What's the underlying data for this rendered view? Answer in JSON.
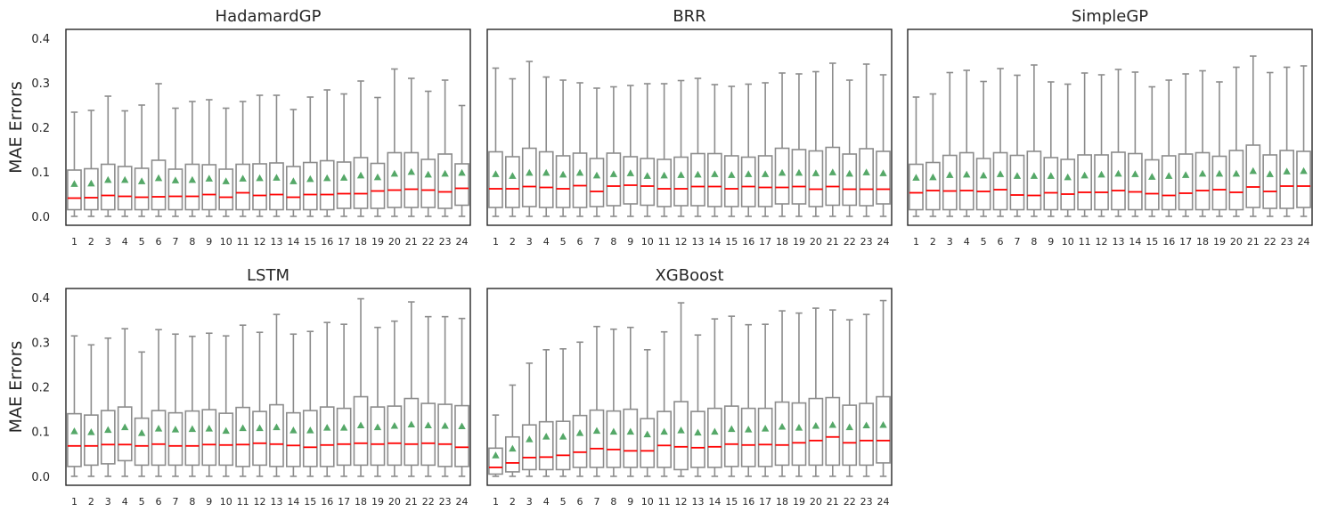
{
  "figure": {
    "ylabel": "MAE Errors"
  },
  "chart_data": [
    {
      "type": "box",
      "title": "HadamardGP",
      "categories": [
        "1",
        "2",
        "3",
        "4",
        "5",
        "6",
        "7",
        "8",
        "9",
        "10",
        "11",
        "12",
        "13",
        "14",
        "15",
        "16",
        "17",
        "18",
        "19",
        "20",
        "21",
        "22",
        "23",
        "24"
      ],
      "ylim": [
        -0.02,
        0.42
      ],
      "yticks": [
        "0.0",
        "0.1",
        "0.2",
        "0.3",
        "0.4"
      ],
      "boxes": {
        "q1": [
          0.015,
          0.015,
          0.015,
          0.015,
          0.015,
          0.015,
          0.015,
          0.015,
          0.015,
          0.015,
          0.015,
          0.015,
          0.015,
          0.015,
          0.015,
          0.015,
          0.018,
          0.018,
          0.018,
          0.02,
          0.02,
          0.02,
          0.018,
          0.025
        ],
        "median": [
          0.041,
          0.042,
          0.047,
          0.045,
          0.043,
          0.044,
          0.045,
          0.045,
          0.049,
          0.043,
          0.053,
          0.047,
          0.049,
          0.043,
          0.049,
          0.049,
          0.051,
          0.051,
          0.057,
          0.059,
          0.061,
          0.059,
          0.055,
          0.063
        ],
        "q3": [
          0.104,
          0.107,
          0.117,
          0.112,
          0.108,
          0.126,
          0.106,
          0.117,
          0.116,
          0.106,
          0.117,
          0.118,
          0.12,
          0.112,
          0.121,
          0.125,
          0.122,
          0.132,
          0.119,
          0.143,
          0.143,
          0.128,
          0.14,
          0.118
        ],
        "whisk_lo": [
          0,
          0,
          0,
          0,
          0,
          0,
          0,
          0,
          0,
          0,
          0,
          0,
          0,
          0,
          0,
          0,
          0,
          0,
          0,
          0,
          0,
          0,
          0,
          0
        ],
        "whisk_hi": [
          0.234,
          0.238,
          0.27,
          0.237,
          0.25,
          0.298,
          0.243,
          0.258,
          0.262,
          0.243,
          0.258,
          0.272,
          0.272,
          0.24,
          0.268,
          0.284,
          0.275,
          0.304,
          0.267,
          0.331,
          0.31,
          0.281,
          0.306,
          0.249
        ],
        "mean": [
          0.073,
          0.074,
          0.082,
          0.082,
          0.079,
          0.086,
          0.081,
          0.082,
          0.085,
          0.079,
          0.085,
          0.086,
          0.087,
          0.079,
          0.084,
          0.086,
          0.087,
          0.092,
          0.088,
          0.096,
          0.1,
          0.094,
          0.096,
          0.098
        ]
      }
    },
    {
      "type": "box",
      "title": "BRR",
      "categories": [
        "1",
        "2",
        "3",
        "4",
        "5",
        "6",
        "7",
        "8",
        "9",
        "10",
        "11",
        "12",
        "13",
        "14",
        "15",
        "16",
        "17",
        "18",
        "19",
        "20",
        "21",
        "22",
        "23",
        "24"
      ],
      "ylim": [
        -0.02,
        0.42
      ],
      "yticks": [
        "0.0",
        "0.1",
        "0.2",
        "0.3",
        "0.4"
      ],
      "boxes": {
        "q1": [
          0.02,
          0.02,
          0.022,
          0.02,
          0.02,
          0.02,
          0.022,
          0.024,
          0.028,
          0.025,
          0.022,
          0.024,
          0.024,
          0.022,
          0.022,
          0.022,
          0.022,
          0.028,
          0.028,
          0.022,
          0.025,
          0.025,
          0.024,
          0.028
        ],
        "median": [
          0.062,
          0.062,
          0.067,
          0.065,
          0.062,
          0.069,
          0.056,
          0.068,
          0.07,
          0.068,
          0.062,
          0.062,
          0.067,
          0.067,
          0.062,
          0.067,
          0.065,
          0.065,
          0.067,
          0.061,
          0.067,
          0.061,
          0.061,
          0.061
        ],
        "q3": [
          0.145,
          0.134,
          0.153,
          0.145,
          0.136,
          0.142,
          0.13,
          0.142,
          0.134,
          0.13,
          0.128,
          0.133,
          0.141,
          0.141,
          0.136,
          0.133,
          0.136,
          0.153,
          0.15,
          0.147,
          0.155,
          0.14,
          0.152,
          0.146
        ],
        "whisk_lo": [
          0,
          0,
          0,
          0,
          0,
          0,
          0,
          0,
          0,
          0,
          0,
          0,
          0,
          0,
          0,
          0,
          0,
          0,
          0,
          0,
          0,
          0,
          0,
          0
        ],
        "whisk_hi": [
          0.333,
          0.309,
          0.348,
          0.313,
          0.306,
          0.3,
          0.288,
          0.291,
          0.294,
          0.298,
          0.298,
          0.305,
          0.31,
          0.296,
          0.292,
          0.297,
          0.3,
          0.322,
          0.32,
          0.325,
          0.344,
          0.306,
          0.342,
          0.318
        ],
        "mean": [
          0.095,
          0.091,
          0.098,
          0.098,
          0.094,
          0.098,
          0.092,
          0.095,
          0.097,
          0.091,
          0.092,
          0.093,
          0.094,
          0.095,
          0.093,
          0.095,
          0.095,
          0.098,
          0.098,
          0.097,
          0.099,
          0.096,
          0.099,
          0.097
        ]
      }
    },
    {
      "type": "box",
      "title": "SimpleGP",
      "categories": [
        "1",
        "2",
        "3",
        "4",
        "5",
        "6",
        "7",
        "8",
        "9",
        "10",
        "11",
        "12",
        "13",
        "14",
        "15",
        "16",
        "17",
        "18",
        "19",
        "20",
        "21",
        "22",
        "23",
        "24"
      ],
      "ylim": [
        -0.02,
        0.42
      ],
      "yticks": [
        "0.0",
        "0.1",
        "0.2",
        "0.3",
        "0.4"
      ],
      "boxes": {
        "q1": [
          0.015,
          0.015,
          0.015,
          0.015,
          0.015,
          0.015,
          0.015,
          0.015,
          0.015,
          0.015,
          0.015,
          0.015,
          0.015,
          0.015,
          0.015,
          0.015,
          0.015,
          0.015,
          0.015,
          0.015,
          0.02,
          0.018,
          0.018,
          0.02
        ],
        "median": [
          0.053,
          0.058,
          0.057,
          0.058,
          0.056,
          0.06,
          0.048,
          0.047,
          0.053,
          0.05,
          0.054,
          0.054,
          0.058,
          0.055,
          0.051,
          0.047,
          0.052,
          0.058,
          0.06,
          0.054,
          0.066,
          0.056,
          0.068,
          0.068
        ],
        "q3": [
          0.117,
          0.121,
          0.137,
          0.143,
          0.13,
          0.143,
          0.137,
          0.146,
          0.132,
          0.128,
          0.138,
          0.138,
          0.144,
          0.141,
          0.127,
          0.136,
          0.14,
          0.143,
          0.135,
          0.148,
          0.16,
          0.138,
          0.148,
          0.146
        ],
        "whisk_lo": [
          0,
          0,
          0,
          0,
          0,
          0,
          0,
          0,
          0,
          0,
          0,
          0,
          0,
          0,
          0,
          0,
          0,
          0,
          0,
          0,
          0,
          0,
          0,
          0
        ],
        "whisk_hi": [
          0.268,
          0.275,
          0.323,
          0.328,
          0.303,
          0.332,
          0.317,
          0.34,
          0.302,
          0.297,
          0.322,
          0.318,
          0.33,
          0.324,
          0.291,
          0.306,
          0.32,
          0.327,
          0.302,
          0.335,
          0.36,
          0.323,
          0.335,
          0.338
        ],
        "mean": [
          0.087,
          0.088,
          0.093,
          0.094,
          0.092,
          0.095,
          0.091,
          0.091,
          0.091,
          0.088,
          0.092,
          0.094,
          0.096,
          0.095,
          0.089,
          0.091,
          0.093,
          0.096,
          0.096,
          0.096,
          0.102,
          0.095,
          0.101,
          0.102
        ]
      }
    },
    {
      "type": "box",
      "title": "LSTM",
      "categories": [
        "1",
        "2",
        "3",
        "4",
        "5",
        "6",
        "7",
        "8",
        "9",
        "10",
        "11",
        "12",
        "13",
        "14",
        "15",
        "16",
        "17",
        "18",
        "19",
        "20",
        "21",
        "22",
        "23",
        "24"
      ],
      "ylim": [
        -0.02,
        0.42
      ],
      "yticks": [
        "0.0",
        "0.1",
        "0.2",
        "0.3",
        "0.4"
      ],
      "boxes": {
        "q1": [
          0.022,
          0.025,
          0.028,
          0.035,
          0.025,
          0.025,
          0.025,
          0.025,
          0.025,
          0.025,
          0.022,
          0.025,
          0.022,
          0.022,
          0.022,
          0.022,
          0.025,
          0.025,
          0.025,
          0.025,
          0.025,
          0.025,
          0.022,
          0.022
        ],
        "median": [
          0.068,
          0.068,
          0.071,
          0.071,
          0.068,
          0.072,
          0.068,
          0.068,
          0.071,
          0.07,
          0.071,
          0.074,
          0.072,
          0.069,
          0.065,
          0.07,
          0.072,
          0.074,
          0.072,
          0.074,
          0.072,
          0.074,
          0.072,
          0.065
        ],
        "q3": [
          0.14,
          0.137,
          0.147,
          0.155,
          0.13,
          0.147,
          0.142,
          0.146,
          0.149,
          0.141,
          0.154,
          0.145,
          0.16,
          0.142,
          0.147,
          0.155,
          0.152,
          0.178,
          0.155,
          0.157,
          0.174,
          0.163,
          0.161,
          0.158
        ],
        "whisk_lo": [
          0,
          0,
          0,
          0,
          0,
          0,
          0,
          0,
          0,
          0,
          0,
          0,
          0,
          0,
          0,
          0,
          0,
          0,
          0,
          0,
          0,
          0,
          0,
          0
        ],
        "whisk_hi": [
          0.314,
          0.294,
          0.309,
          0.33,
          0.278,
          0.328,
          0.318,
          0.313,
          0.32,
          0.314,
          0.338,
          0.322,
          0.362,
          0.318,
          0.324,
          0.344,
          0.34,
          0.397,
          0.333,
          0.347,
          0.39,
          0.357,
          0.357,
          0.353
        ],
        "mean": [
          0.101,
          0.099,
          0.104,
          0.11,
          0.097,
          0.107,
          0.105,
          0.106,
          0.107,
          0.102,
          0.108,
          0.108,
          0.11,
          0.103,
          0.103,
          0.109,
          0.109,
          0.114,
          0.11,
          0.113,
          0.116,
          0.114,
          0.113,
          0.112
        ]
      }
    },
    {
      "type": "box",
      "title": "XGBoost",
      "categories": [
        "1",
        "2",
        "3",
        "4",
        "5",
        "6",
        "7",
        "8",
        "9",
        "10",
        "11",
        "12",
        "13",
        "14",
        "15",
        "16",
        "17",
        "18",
        "19",
        "20",
        "21",
        "22",
        "23",
        "24"
      ],
      "ylim": [
        -0.02,
        0.42
      ],
      "yticks": [
        "0.0",
        "0.1",
        "0.2",
        "0.3",
        "0.4"
      ],
      "boxes": {
        "q1": [
          0.005,
          0.01,
          0.015,
          0.015,
          0.015,
          0.02,
          0.02,
          0.02,
          0.02,
          0.02,
          0.02,
          0.015,
          0.02,
          0.02,
          0.022,
          0.022,
          0.022,
          0.025,
          0.025,
          0.025,
          0.025,
          0.025,
          0.025,
          0.03
        ],
        "median": [
          0.02,
          0.03,
          0.042,
          0.043,
          0.047,
          0.054,
          0.062,
          0.06,
          0.057,
          0.057,
          0.069,
          0.066,
          0.064,
          0.066,
          0.072,
          0.07,
          0.071,
          0.07,
          0.075,
          0.08,
          0.088,
          0.075,
          0.08,
          0.08
        ],
        "q3": [
          0.063,
          0.088,
          0.115,
          0.122,
          0.123,
          0.136,
          0.148,
          0.146,
          0.15,
          0.129,
          0.145,
          0.167,
          0.145,
          0.152,
          0.157,
          0.152,
          0.152,
          0.166,
          0.164,
          0.174,
          0.176,
          0.159,
          0.163,
          0.178
        ],
        "whisk_lo": [
          0,
          0,
          0,
          0,
          0,
          0,
          0,
          0,
          0,
          0,
          0,
          0,
          0,
          0,
          0,
          0,
          0,
          0,
          0,
          0,
          0,
          0,
          0,
          0
        ],
        "whisk_hi": [
          0.137,
          0.204,
          0.253,
          0.283,
          0.285,
          0.3,
          0.335,
          0.329,
          0.333,
          0.283,
          0.323,
          0.388,
          0.316,
          0.352,
          0.358,
          0.339,
          0.34,
          0.37,
          0.365,
          0.376,
          0.372,
          0.35,
          0.362,
          0.393
        ],
        "mean": [
          0.047,
          0.062,
          0.083,
          0.089,
          0.089,
          0.097,
          0.102,
          0.1,
          0.1,
          0.094,
          0.1,
          0.103,
          0.098,
          0.1,
          0.106,
          0.105,
          0.107,
          0.111,
          0.109,
          0.113,
          0.115,
          0.11,
          0.114,
          0.115
        ]
      }
    }
  ],
  "colors": {
    "frame": "#262626",
    "box": "#8c8c8c",
    "median": "#ff0000",
    "mean": "#55a868",
    "background": "#ffffff"
  }
}
